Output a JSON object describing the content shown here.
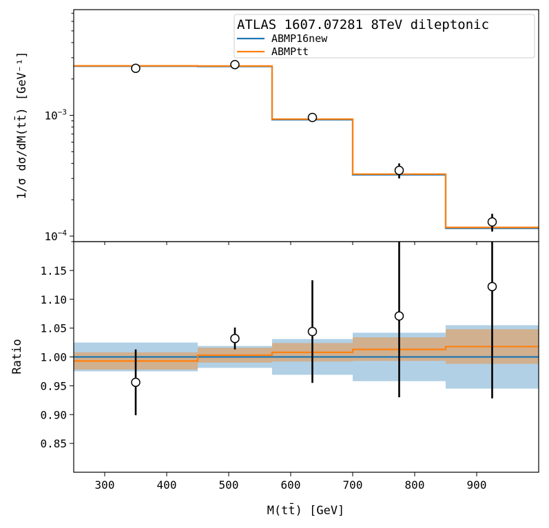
{
  "chart_data": [
    {
      "type": "line",
      "panel": "top",
      "title": "ATLAS 1607.07281 8TeV dileptonic",
      "xlabel": "",
      "ylabel": "1/σ dσ/dM(tt̄) [GeV⁻¹]",
      "yscale": "log",
      "xlim": [
        250,
        1000
      ],
      "ylim": [
        9e-05,
        0.0075
      ],
      "yticks": [
        {
          "value": 0.001,
          "base": "10",
          "exp": "−3"
        },
        {
          "value": 0.0001,
          "base": "10",
          "exp": "−4"
        }
      ],
      "bin_edges": [
        250,
        450,
        570,
        700,
        850,
        1000
      ],
      "series": [
        {
          "name": "ABMP16new",
          "color": "#1f77b4",
          "values": [
            0.00255,
            0.00254,
            0.00092,
            0.000322,
            0.000116
          ]
        },
        {
          "name": "ABMPtt",
          "color": "#ff7f0e",
          "values": [
            0.00257,
            0.00256,
            0.00093,
            0.000326,
            0.000118
          ]
        }
      ],
      "data_points": {
        "x": [
          350,
          510,
          635,
          775,
          925
        ],
        "y": [
          0.00245,
          0.00263,
          0.00096,
          0.00035,
          0.000131
        ],
        "yerr_low": [
          3e-05,
          5e-05,
          4e-05,
          5e-05,
          2.2e-05
        ],
        "yerr_high": [
          3e-05,
          5e-05,
          4e-05,
          5e-05,
          2.2e-05
        ]
      },
      "legend": {
        "position": "top-right"
      }
    },
    {
      "type": "line",
      "panel": "bottom",
      "xlabel": "M(tt̄) [GeV]",
      "ylabel": "Ratio",
      "xlim": [
        250,
        1000
      ],
      "ylim": [
        0.8,
        1.2
      ],
      "xticks": [
        300,
        400,
        500,
        600,
        700,
        800,
        900
      ],
      "yticks": [
        "0.85",
        "0.90",
        "0.95",
        "1.00",
        "1.05",
        "1.10",
        "1.15"
      ],
      "bin_edges": [
        250,
        450,
        570,
        700,
        850,
        1000
      ],
      "series": [
        {
          "name": "ABMP16new",
          "color": "#1f77b4",
          "values": [
            1.0,
            1.0,
            1.0,
            1.0,
            1.0
          ],
          "band_low": [
            0.975,
            0.981,
            0.969,
            0.958,
            0.945
          ],
          "band_high": [
            1.025,
            1.019,
            1.031,
            1.042,
            1.055
          ]
        },
        {
          "name": "ABMPtt",
          "color": "#ff7f0e",
          "values": [
            0.993,
            1.003,
            1.008,
            1.013,
            1.018
          ],
          "band_low": [
            0.978,
            0.99,
            0.992,
            0.993,
            0.988
          ],
          "band_high": [
            1.008,
            1.016,
            1.024,
            1.034,
            1.048
          ]
        }
      ],
      "data_points": {
        "x": [
          350,
          510,
          635,
          775,
          925
        ],
        "y": [
          0.956,
          1.032,
          1.044,
          1.071,
          1.122
        ],
        "yerr_low": [
          0.057,
          0.019,
          0.089,
          0.141,
          0.194
        ],
        "yerr_high": [
          0.057,
          0.019,
          0.089,
          0.141,
          0.194
        ]
      }
    }
  ]
}
